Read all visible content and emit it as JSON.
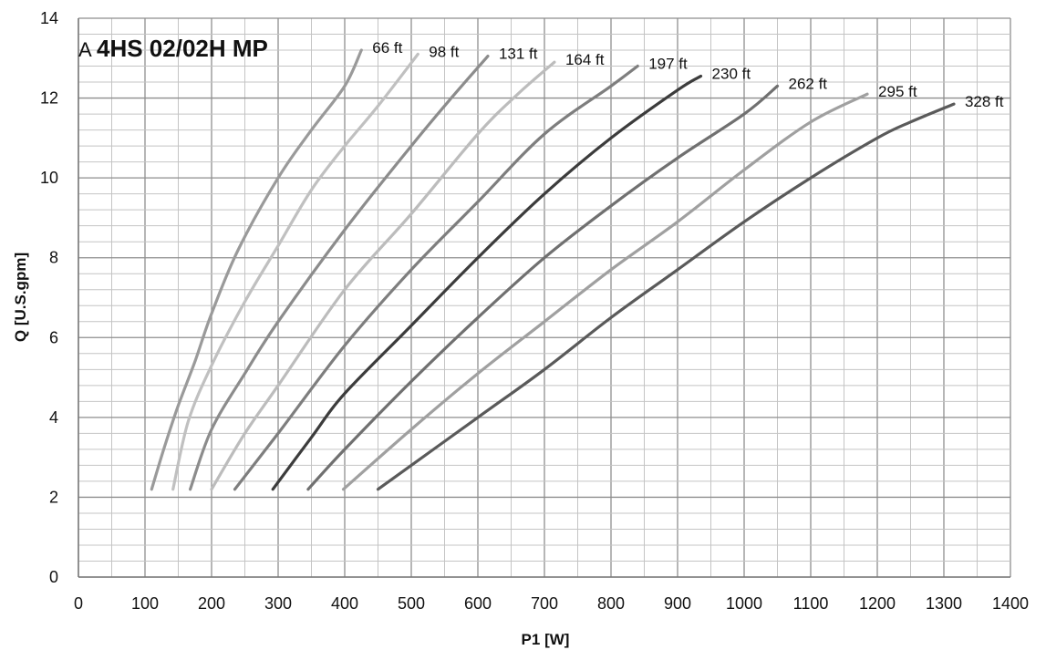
{
  "chart_data": {
    "type": "line",
    "title_prefix": "A",
    "title": "4HS 02/02H MP",
    "xlabel": "P1 [W]",
    "ylabel": "Q [U.S.gpm]",
    "xlim": [
      0,
      1400
    ],
    "ylim": [
      0,
      14
    ],
    "x_ticks": [
      "0",
      "100",
      "200",
      "300",
      "400",
      "500",
      "600",
      "700",
      "800",
      "900",
      "1000",
      "1100",
      "1200",
      "1300",
      "1400"
    ],
    "y_ticks": [
      "0",
      "2",
      "4",
      "6",
      "8",
      "10",
      "12",
      "14"
    ],
    "grid": true,
    "series": [
      {
        "name": "66 ft",
        "color": "#9a9a9a",
        "points": [
          [
            110,
            2.2
          ],
          [
            130,
            3.3
          ],
          [
            150,
            4.3
          ],
          [
            175,
            5.4
          ],
          [
            200,
            6.6
          ],
          [
            240,
            8.2
          ],
          [
            300,
            10.0
          ],
          [
            350,
            11.2
          ],
          [
            400,
            12.3
          ],
          [
            425,
            13.2
          ]
        ]
      },
      {
        "name": "98 ft",
        "color": "#c0c0c0",
        "points": [
          [
            142,
            2.2
          ],
          [
            165,
            3.9
          ],
          [
            200,
            5.3
          ],
          [
            250,
            6.9
          ],
          [
            300,
            8.3
          ],
          [
            350,
            9.7
          ],
          [
            400,
            10.8
          ],
          [
            450,
            11.8
          ],
          [
            510,
            13.1
          ]
        ]
      },
      {
        "name": "131 ft",
        "color": "#8c8c8c",
        "points": [
          [
            168,
            2.2
          ],
          [
            200,
            3.7
          ],
          [
            250,
            5.1
          ],
          [
            300,
            6.4
          ],
          [
            400,
            8.7
          ],
          [
            500,
            10.8
          ],
          [
            560,
            12.0
          ],
          [
            615,
            13.05
          ]
        ]
      },
      {
        "name": "164 ft",
        "color": "#bcbcbc",
        "points": [
          [
            200,
            2.2
          ],
          [
            250,
            3.6
          ],
          [
            300,
            4.8
          ],
          [
            400,
            7.2
          ],
          [
            500,
            9.1
          ],
          [
            600,
            11.1
          ],
          [
            660,
            12.1
          ],
          [
            715,
            12.9
          ]
        ]
      },
      {
        "name": "197 ft",
        "color": "#7e7e7e",
        "points": [
          [
            235,
            2.2
          ],
          [
            300,
            3.6
          ],
          [
            400,
            5.8
          ],
          [
            500,
            7.7
          ],
          [
            600,
            9.4
          ],
          [
            700,
            11.1
          ],
          [
            800,
            12.3
          ],
          [
            840,
            12.8
          ]
        ]
      },
      {
        "name": "230 ft",
        "color": "#3c3c3c",
        "points": [
          [
            292,
            2.2
          ],
          [
            350,
            3.5
          ],
          [
            400,
            4.6
          ],
          [
            500,
            6.3
          ],
          [
            600,
            8.0
          ],
          [
            700,
            9.6
          ],
          [
            800,
            11.0
          ],
          [
            900,
            12.2
          ],
          [
            935,
            12.55
          ]
        ]
      },
      {
        "name": "262 ft",
        "color": "#707070",
        "points": [
          [
            345,
            2.2
          ],
          [
            400,
            3.2
          ],
          [
            500,
            4.9
          ],
          [
            600,
            6.5
          ],
          [
            700,
            8.0
          ],
          [
            800,
            9.3
          ],
          [
            900,
            10.5
          ],
          [
            1000,
            11.6
          ],
          [
            1050,
            12.3
          ]
        ]
      },
      {
        "name": "295 ft",
        "color": "#a0a0a0",
        "points": [
          [
            398,
            2.2
          ],
          [
            500,
            3.7
          ],
          [
            600,
            5.1
          ],
          [
            700,
            6.4
          ],
          [
            800,
            7.7
          ],
          [
            900,
            8.9
          ],
          [
            1000,
            10.2
          ],
          [
            1100,
            11.4
          ],
          [
            1185,
            12.1
          ]
        ]
      },
      {
        "name": "328 ft",
        "color": "#5a5a5a",
        "points": [
          [
            450,
            2.2
          ],
          [
            600,
            4.0
          ],
          [
            700,
            5.2
          ],
          [
            800,
            6.5
          ],
          [
            900,
            7.7
          ],
          [
            1000,
            8.9
          ],
          [
            1100,
            10.0
          ],
          [
            1200,
            11.0
          ],
          [
            1250,
            11.4
          ],
          [
            1315,
            11.85
          ]
        ]
      }
    ]
  }
}
